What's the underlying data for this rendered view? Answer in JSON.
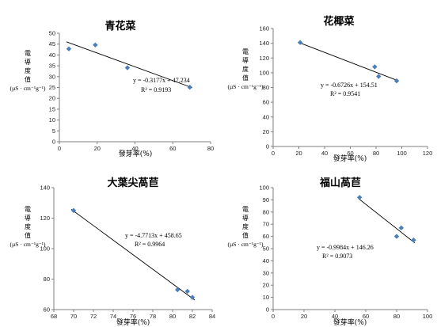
{
  "chart_data": [
    {
      "type": "scatter",
      "title": "青花菜",
      "xlabel": "發芽率(%)",
      "ylabel_chars": [
        "電",
        "導",
        "度",
        "值"
      ],
      "ylabel_unit": "(µS · cm⁻¹g⁻¹)",
      "xlim": [
        0,
        80
      ],
      "ylim": [
        0,
        50
      ],
      "xticks": [
        "0",
        "20",
        "40",
        "60",
        "80"
      ],
      "yticks": [
        "0",
        "5",
        "10",
        "15",
        "20",
        "25",
        "30",
        "35",
        "40",
        "45",
        "50"
      ],
      "x": [
        5,
        19,
        36,
        69
      ],
      "y": [
        42.8,
        44.6,
        34.1,
        25.1
      ],
      "trendline": {
        "slope": -0.3177,
        "intercept": 47.234
      },
      "equation": "y = -0.3177x + 47.234",
      "r2": "R² = 0.9193",
      "grid": false,
      "marker_color": "#4a7ebb"
    },
    {
      "type": "scatter",
      "title": "花椰菜",
      "xlabel": "發芽率(%)",
      "ylabel_chars": [
        "電",
        "導",
        "度",
        "值"
      ],
      "ylabel_unit": "(µS · cm⁻¹g⁻¹)",
      "xlim": [
        0,
        120
      ],
      "ylim": [
        0,
        160
      ],
      "xticks": [
        "0",
        "20",
        "40",
        "60",
        "80",
        "100",
        "120"
      ],
      "yticks": [
        "0",
        "20",
        "40",
        "60",
        "80",
        "100",
        "120",
        "140",
        "160"
      ],
      "x": [
        21,
        79,
        82,
        96
      ],
      "y": [
        141,
        108,
        95,
        89
      ],
      "trendline": {
        "slope": -0.6726,
        "intercept": 154.51
      },
      "equation": "y = -0.6726x + 154.51",
      "r2": "R² = 0.9541",
      "grid": false,
      "marker_color": "#4a7ebb"
    },
    {
      "type": "scatter",
      "title": "大葉尖萵苣",
      "xlabel": "發芽率(%)",
      "ylabel_chars": [
        "電",
        "導",
        "度",
        "值"
      ],
      "ylabel_unit": "(µS · cm⁻¹g⁻¹)",
      "xlim": [
        68,
        84
      ],
      "ylim": [
        60,
        140
      ],
      "xticks": [
        "68",
        "70",
        "72",
        "74",
        "76",
        "78",
        "80",
        "82",
        "84"
      ],
      "yticks": [
        "60",
        "80",
        "100",
        "120",
        "140"
      ],
      "x": [
        70,
        80.5,
        81.5,
        82
      ],
      "y": [
        125,
        73,
        72,
        68
      ],
      "trendline": {
        "slope": -4.7713,
        "intercept": 458.65
      },
      "equation": "y = -4.7713x + 458.65",
      "r2": "R² = 0.9964",
      "grid": false,
      "marker_color": "#4a7ebb"
    },
    {
      "type": "scatter",
      "title": "福山萵苣",
      "xlabel": "發芽率(%)",
      "ylabel_chars": [
        "電",
        "導",
        "度",
        "值"
      ],
      "ylabel_unit": "(µS · cm⁻¹g⁻¹)",
      "xlim": [
        0,
        100
      ],
      "ylim": [
        0,
        100
      ],
      "xticks": [
        "0",
        "20",
        "40",
        "60",
        "80",
        "100"
      ],
      "yticks": [
        "0",
        "10",
        "20",
        "30",
        "40",
        "50",
        "60",
        "70",
        "80",
        "90",
        "100"
      ],
      "x": [
        56,
        80,
        83,
        91
      ],
      "y": [
        92,
        60,
        67,
        57
      ],
      "trendline": {
        "slope": -0.9984,
        "intercept": 146.26
      },
      "equation": "y = -0.9984x + 146.26",
      "r2": "R² = 0.9073",
      "grid": false,
      "marker_color": "#4a7ebb"
    }
  ]
}
